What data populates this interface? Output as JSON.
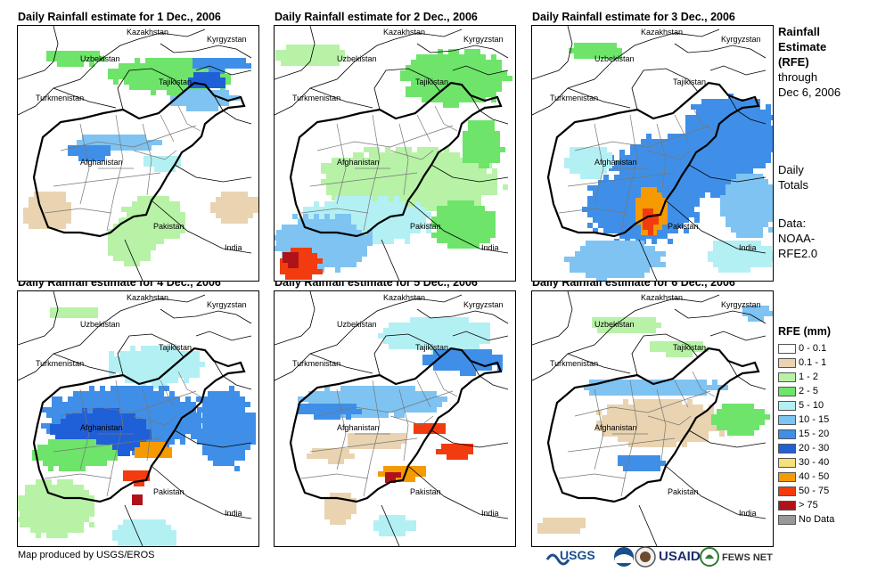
{
  "panels": [
    {
      "title": "Daily Rainfall estimate for 1 Dec., 2006"
    },
    {
      "title": "Daily Rainfall estimate for 2 Dec., 2006"
    },
    {
      "title": "Daily Rainfall estimate for 3 Dec., 2006"
    },
    {
      "title": "Daily Rainfall estimate for 4 Dec., 2006"
    },
    {
      "title": "Daily Rainfall estimate for 5 Dec., 2006"
    },
    {
      "title": "Daily Rainfall estimate for 6 Dec., 2006"
    }
  ],
  "place_labels": {
    "kazakhstan": "Kazakhstan",
    "kyrgyzstan": "Kyrgyzstan",
    "uzbekistan": "Uzbekistan",
    "tajikistan": "Tajikistan",
    "turkmenistan": "Turkmenistan",
    "afghanistan": "Afghanistan",
    "pakistan": "Pakistan",
    "india": "India"
  },
  "side": {
    "title_line1": "Rainfall",
    "title_line2": "Estimate",
    "title_line3": "(RFE)",
    "through": "through",
    "date": "Dec 6, 2006",
    "daily_line1": "Daily",
    "daily_line2": "Totals",
    "data_label": "Data:",
    "source_line1": "NOAA-",
    "source_line2": "RFE2.0"
  },
  "legend": {
    "title": "RFE (mm)",
    "items": [
      {
        "label": "0 - 0.1",
        "color": "#ffffff"
      },
      {
        "label": "0.1 - 1",
        "color": "#e9d3b0"
      },
      {
        "label": "1 - 2",
        "color": "#b7f2a6"
      },
      {
        "label": "2 - 5",
        "color": "#6ee46a"
      },
      {
        "label": "5 - 10",
        "color": "#b3f0f4"
      },
      {
        "label": "10 - 15",
        "color": "#7ec3f2"
      },
      {
        "label": "15 - 20",
        "color": "#3f8fe8"
      },
      {
        "label": "20 - 30",
        "color": "#1f5fd8"
      },
      {
        "label": "30 - 40",
        "color": "#f7e07a"
      },
      {
        "label": "40 - 50",
        "color": "#f59a00"
      },
      {
        "label": "50 - 75",
        "color": "#f23b0e"
      },
      {
        "label": "> 75",
        "color": "#b0121a"
      },
      {
        "label": "No Data",
        "color": "#999999"
      }
    ]
  },
  "credit": "Map produced by USGS/EROS",
  "logos": [
    "USGS",
    "USAID",
    "FEWS NET"
  ]
}
